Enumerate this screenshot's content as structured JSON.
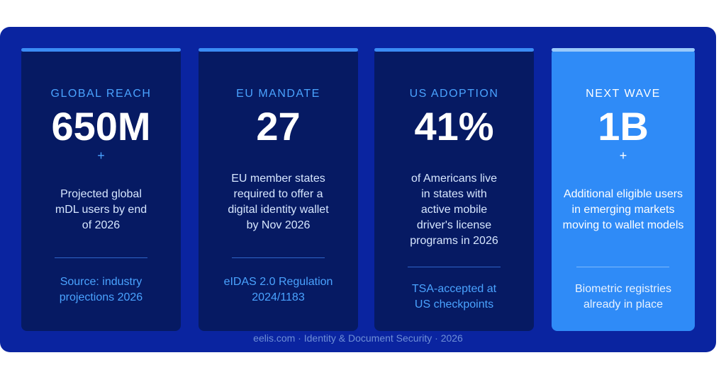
{
  "cards": [
    {
      "label": "GLOBAL REACH",
      "value": "650M",
      "plus": "+",
      "description": "Projected global mDL users by end of 2026",
      "source": "Source: industry projections 2026"
    },
    {
      "label": "EU MANDATE",
      "value": "27",
      "plus": "",
      "description": "EU member states required to offer a digital identity wallet by Nov 2026",
      "source": "eIDAS 2.0 Regulation 2024/1183"
    },
    {
      "label": "US ADOPTION",
      "value": "41%",
      "plus": "",
      "description": "of Americans live in states with active mobile driver's license programs in 2026",
      "source": "TSA-accepted at US checkpoints"
    },
    {
      "label": "NEXT WAVE",
      "value": "1B",
      "plus": "+",
      "description": "Additional eligible users in emerging markets moving to wallet models",
      "source": "Biometric registries already in place"
    }
  ],
  "footer": "eelis.com · Identity & Document Security · 2026",
  "colors": {
    "panel": "#0a24a0",
    "card": "#061a63",
    "highlight_card": "#2f8bf7",
    "accent": "#4aa3ff"
  }
}
